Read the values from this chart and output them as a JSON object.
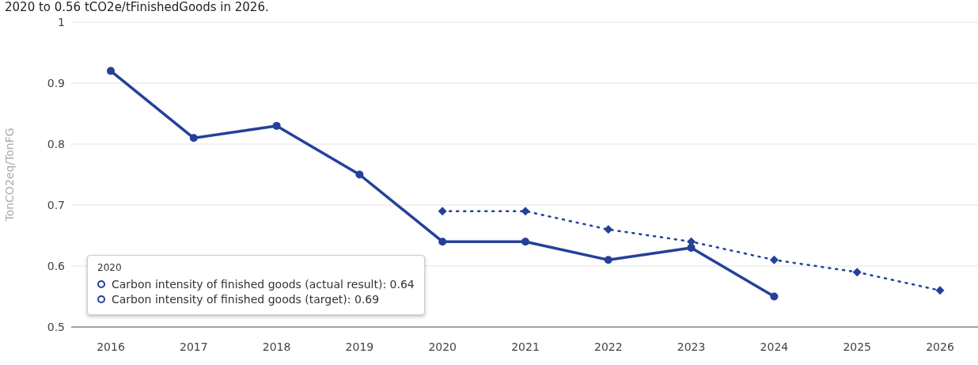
{
  "chart_data": {
    "type": "line",
    "subtitle": "2020 to 0.56 tCO2e/tFinishedGoods in 2026.",
    "ylabel": "TonCO2eq/TonFG",
    "categories": [
      "2016",
      "2017",
      "2018",
      "2019",
      "2020",
      "2021",
      "2022",
      "2023",
      "2024",
      "2025",
      "2026"
    ],
    "series": [
      {
        "color": "#24409a",
        "marker": "circle",
        "line_style": "solid",
        "values": [
          0.92,
          0.81,
          0.83,
          0.75,
          0.64,
          0.64,
          0.61,
          0.63,
          0.55,
          null,
          null
        ]
      },
      {
        "color": "#24409a",
        "marker": "diamond",
        "line_style": "dotted",
        "values": [
          null,
          null,
          null,
          null,
          0.69,
          0.69,
          0.66,
          0.64,
          0.61,
          0.59,
          0.56
        ]
      }
    ],
    "ylim": [
      0.5,
      1
    ],
    "yticks": [
      0.5,
      0.6,
      0.7,
      0.8,
      0.9,
      1
    ],
    "grid": "y",
    "annotations": [
      "2020",
      "Carbon intensity of finished goods (actual result): 0.64",
      "Carbon intensity of finished goods (target): 0.69"
    ]
  }
}
